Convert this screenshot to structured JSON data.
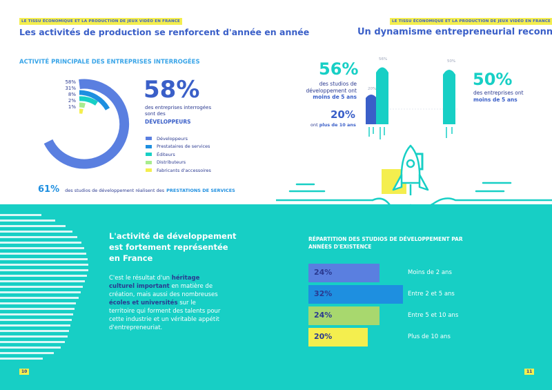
{
  "left": {
    "tag": "LE TISSU ÉCONOMIQUE ET LA PRODUCTION DE JEUX VIDÉO EN FRANCE",
    "headline": "Les activités de production se renforcent d'année en année",
    "section_title": "ACTIVITÉ PRINCIPALE DES ENTREPRISES INTERROGÉES",
    "pct_labels": [
      "58%",
      "31%",
      "8%",
      "2%",
      "1%"
    ],
    "big_value": "58%",
    "big_desc_line1": "des entreprises interrogées",
    "big_desc_line2": "sont des",
    "big_desc_emph": "DÉVELOPPEURS",
    "legend": [
      {
        "label": "Développeurs",
        "color": "#5a7fe0"
      },
      {
        "label": "Prestataires de services",
        "color": "#1e8fe0"
      },
      {
        "label": "Éditeurs",
        "color": "#17cfc5"
      },
      {
        "label": "Distributeurs",
        "color": "#a8ec8e"
      },
      {
        "label": "Fabricants d'accessoires",
        "color": "#f4ee4e"
      }
    ],
    "footer_value": "61%",
    "footer_text": "des studios de développement réalisent des",
    "footer_emph": "PRESTATIONS DE SERVICES",
    "page_number": "10"
  },
  "right": {
    "tag": "LE TISSU ÉCONOMIQUE ET LA PRODUCTION DE JEUX VIDÉO EN FRANCE",
    "headline": "Un dynamisme entrepreneurial reconnu",
    "stat1_value": "56%",
    "stat1_line1": "des studios de",
    "stat1_line2": "développement ont",
    "stat1_emph": "moins de 5 ans",
    "stat2_value": "20%",
    "stat2_text": "ont",
    "stat2_emph": "plus de 10 ans",
    "rocket_label_56": "56%",
    "rocket_label_20": "20%",
    "rocket_label_50": "50%",
    "stat3_value": "50%",
    "stat3_line1": "des entreprises ont",
    "stat3_emph": "moins de 5 ans",
    "page_number": "11"
  },
  "lower_left": {
    "title_line1": "L'activité de développement",
    "title_line2": "est fortement représentée",
    "title_line3": "en France",
    "p1": "C'est le résultat d'un ",
    "p1_emph": "héritage culturel important",
    "p2": " en matière de création, mais aussi des nombreuses ",
    "p2_emph": "écoles et universités",
    "p3": " sur le territoire qui forment des talents pour cette industrie et un véritable appétit d'entrepreneuriat."
  },
  "chart_data": {
    "type": "bar",
    "title": "RÉPARTITION DES STUDIOS DE DÉVELOPPEMENT PAR ANNÉES D'EXISTENCE",
    "categories": [
      "Moins de 2 ans",
      "Entre 2 et 5 ans",
      "Entre 5 et 10 ans",
      "Plus de 10 ans"
    ],
    "values": [
      24,
      32,
      24,
      20
    ],
    "value_labels": [
      "24%",
      "32%",
      "24%",
      "20%"
    ],
    "colors": [
      "#5a7fe0",
      "#1e8fe0",
      "#a8d86e",
      "#f4ee4e"
    ],
    "xlim": [
      0,
      32
    ]
  }
}
